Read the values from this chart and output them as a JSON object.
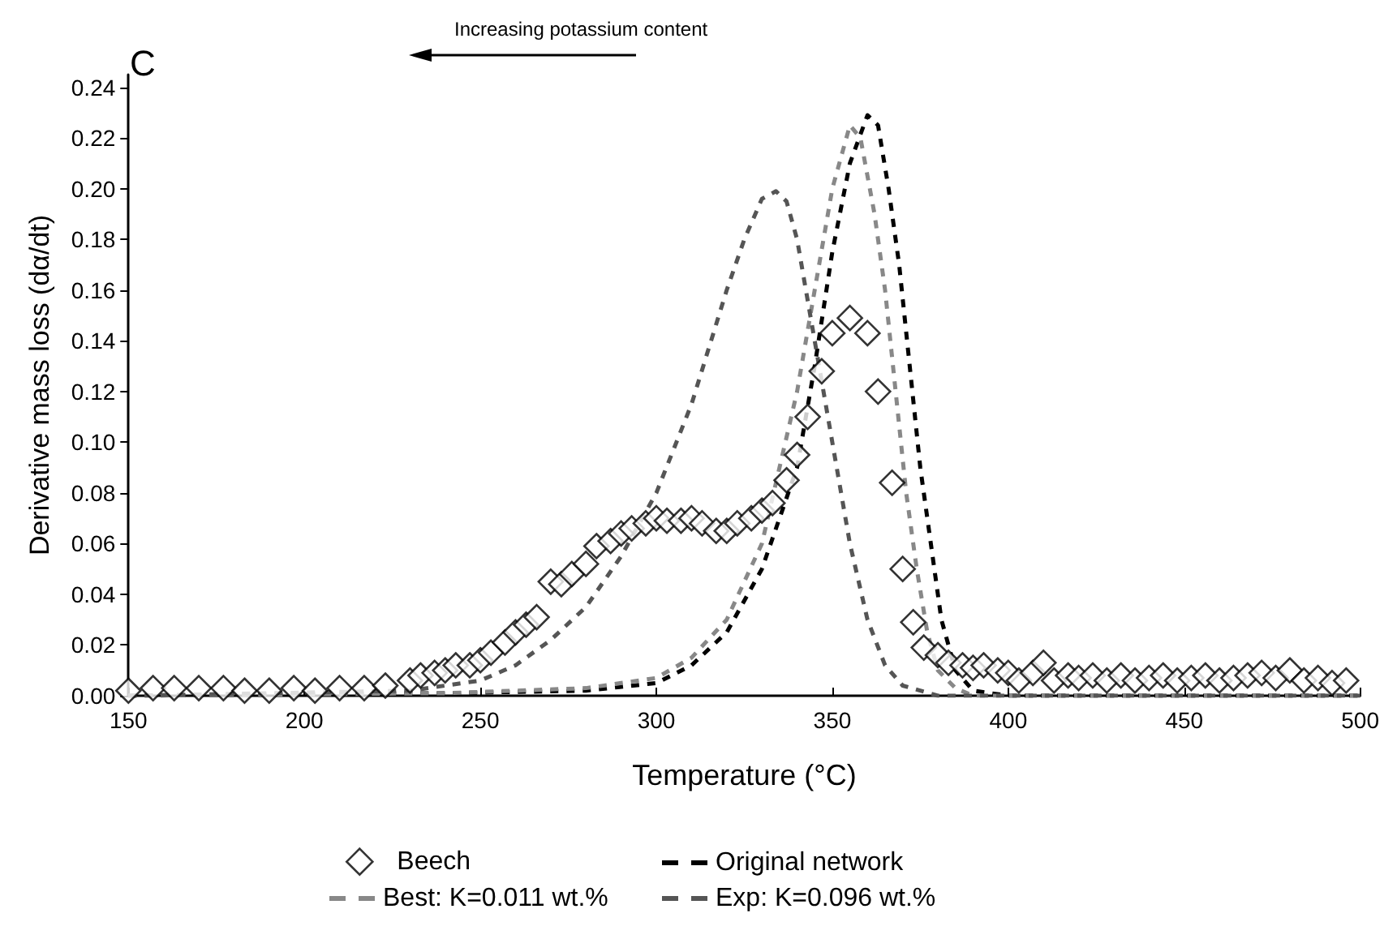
{
  "chart_data": {
    "type": "line",
    "xlabel": "Temperature (°C)",
    "ylabel": "Derivative mass loss (dα/dt)",
    "annotations": [
      "C",
      "Increasing potassium content"
    ],
    "xlim": [
      150,
      500
    ],
    "xticks": [
      150,
      200,
      250,
      300,
      350,
      400,
      450,
      500
    ],
    "ylim": [
      0,
      0.245
    ],
    "yticks": [
      {
        "value": 0,
        "label": "0.00"
      },
      0.02,
      0.04,
      0.06,
      0.08,
      {
        "value": 0.1,
        "label": "0.10"
      },
      0.12,
      0.14,
      0.16,
      0.18,
      {
        "value": 0.2,
        "label": "0.20"
      },
      0.22,
      0.24
    ],
    "grid": false,
    "legend": "bottom",
    "series": [
      {
        "name": "Beech",
        "type": "scatter",
        "marker": "diamond",
        "color": "#000000",
        "x": [
          150,
          157,
          163,
          170,
          177,
          183,
          190,
          197,
          203,
          210,
          217,
          223,
          230,
          233,
          237,
          240,
          243,
          247,
          250,
          253,
          257,
          260,
          263,
          266,
          270,
          273,
          276,
          280,
          283,
          287,
          290,
          293,
          297,
          300,
          303,
          307,
          310,
          313,
          317,
          320,
          323,
          327,
          330,
          333,
          337,
          340,
          343,
          347,
          350,
          355,
          360,
          363,
          367,
          370,
          373,
          376,
          380,
          383,
          387,
          390,
          393,
          397,
          400,
          403,
          407,
          410,
          413,
          417,
          420,
          424,
          428,
          432,
          436,
          440,
          444,
          448,
          452,
          456,
          460,
          464,
          468,
          472,
          476,
          480,
          484,
          488,
          492,
          496
        ],
        "values": [
          0.002,
          0.003,
          0.003,
          0.003,
          0.003,
          0.002,
          0.002,
          0.003,
          0.002,
          0.003,
          0.003,
          0.004,
          0.006,
          0.008,
          0.009,
          0.01,
          0.012,
          0.012,
          0.014,
          0.017,
          0.021,
          0.025,
          0.028,
          0.031,
          0.045,
          0.044,
          0.048,
          0.052,
          0.059,
          0.061,
          0.064,
          0.066,
          0.068,
          0.07,
          0.069,
          0.069,
          0.07,
          0.068,
          0.065,
          0.065,
          0.068,
          0.07,
          0.073,
          0.076,
          0.085,
          0.095,
          0.11,
          0.128,
          0.143,
          0.149,
          0.143,
          0.12,
          0.084,
          0.05,
          0.029,
          0.019,
          0.016,
          0.013,
          0.012,
          0.011,
          0.012,
          0.01,
          0.009,
          0.006,
          0.009,
          0.013,
          0.006,
          0.008,
          0.007,
          0.008,
          0.006,
          0.008,
          0.006,
          0.007,
          0.008,
          0.006,
          0.007,
          0.008,
          0.006,
          0.007,
          0.008,
          0.009,
          0.007,
          0.01,
          0.006,
          0.007,
          0.005,
          0.006
        ]
      },
      {
        "name": "Original network",
        "line_style": "dashed",
        "color": "#000000",
        "x": [
          150,
          240,
          280,
          300,
          310,
          320,
          330,
          340,
          345,
          350,
          355,
          360,
          363,
          366,
          369,
          372,
          375,
          378,
          381,
          385,
          390,
          400,
          500
        ],
        "values": [
          0,
          0.001,
          0.002,
          0.005,
          0.012,
          0.025,
          0.05,
          0.09,
          0.13,
          0.175,
          0.21,
          0.229,
          0.225,
          0.2,
          0.17,
          0.13,
          0.09,
          0.06,
          0.03,
          0.01,
          0.002,
          0,
          0
        ]
      },
      {
        "name": "Best: K=0.011 wt.%",
        "line_style": "dashed",
        "color": "#888888",
        "x": [
          150,
          240,
          280,
          300,
          310,
          320,
          330,
          335,
          340,
          345,
          350,
          355,
          358,
          362,
          365,
          368,
          371,
          374,
          377,
          380,
          385,
          390,
          500
        ],
        "values": [
          0,
          0.001,
          0.003,
          0.007,
          0.015,
          0.03,
          0.06,
          0.09,
          0.12,
          0.16,
          0.2,
          0.225,
          0.22,
          0.19,
          0.16,
          0.12,
          0.08,
          0.05,
          0.025,
          0.01,
          0.003,
          0,
          0
        ]
      },
      {
        "name": "Exp: K=0.096 wt.%",
        "line_style": "dashed",
        "color": "#555555",
        "x": [
          150,
          230,
          250,
          260,
          270,
          280,
          290,
          300,
          310,
          320,
          325,
          330,
          334,
          337,
          340,
          345,
          350,
          355,
          360,
          365,
          370,
          380,
          500
        ],
        "values": [
          0,
          0.002,
          0.006,
          0.012,
          0.022,
          0.035,
          0.055,
          0.08,
          0.115,
          0.16,
          0.18,
          0.196,
          0.199,
          0.195,
          0.18,
          0.14,
          0.1,
          0.06,
          0.03,
          0.012,
          0.004,
          0,
          0
        ]
      }
    ]
  }
}
